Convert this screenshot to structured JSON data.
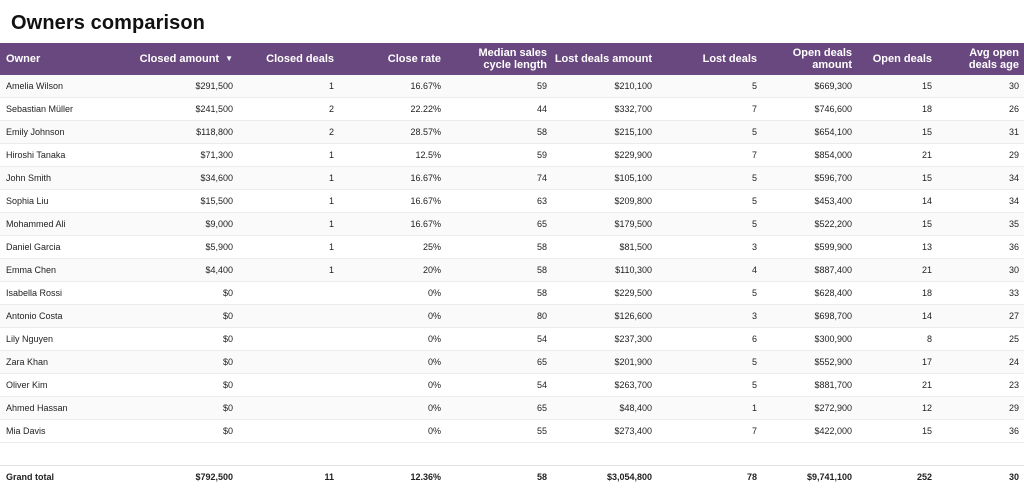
{
  "title": "Owners comparison",
  "columns": [
    [
      "Owner"
    ],
    [
      "Closed amount"
    ],
    [
      "Closed deals"
    ],
    [
      "Close rate"
    ],
    [
      "Median sales",
      "cycle length"
    ],
    [
      "Lost deals amount"
    ],
    [
      "Lost deals"
    ],
    [
      "Open deals",
      "amount"
    ],
    [
      "Open deals"
    ],
    [
      "Avg open",
      "deals age"
    ]
  ],
  "sort_icon": "▼",
  "rows": [
    [
      "Amelia Wilson",
      "$291,500",
      "1",
      "16.67%",
      "59",
      "$210,100",
      "5",
      "$669,300",
      "15",
      "30"
    ],
    [
      "Sebastian Müller",
      "$241,500",
      "2",
      "22.22%",
      "44",
      "$332,700",
      "7",
      "$746,600",
      "18",
      "26"
    ],
    [
      "Emily Johnson",
      "$118,800",
      "2",
      "28.57%",
      "58",
      "$215,100",
      "5",
      "$654,100",
      "15",
      "31"
    ],
    [
      "Hiroshi Tanaka",
      "$71,300",
      "1",
      "12.5%",
      "59",
      "$229,900",
      "7",
      "$854,000",
      "21",
      "29"
    ],
    [
      "John Smith",
      "$34,600",
      "1",
      "16.67%",
      "74",
      "$105,100",
      "5",
      "$596,700",
      "15",
      "34"
    ],
    [
      "Sophia Liu",
      "$15,500",
      "1",
      "16.67%",
      "63",
      "$209,800",
      "5",
      "$453,400",
      "14",
      "34"
    ],
    [
      "Mohammed Ali",
      "$9,000",
      "1",
      "16.67%",
      "65",
      "$179,500",
      "5",
      "$522,200",
      "15",
      "35"
    ],
    [
      "Daniel Garcia",
      "$5,900",
      "1",
      "25%",
      "58",
      "$81,500",
      "3",
      "$599,900",
      "13",
      "36"
    ],
    [
      "Emma Chen",
      "$4,400",
      "1",
      "20%",
      "58",
      "$110,300",
      "4",
      "$887,400",
      "21",
      "30"
    ],
    [
      "Isabella Rossi",
      "$0",
      "",
      "0%",
      "58",
      "$229,500",
      "5",
      "$628,400",
      "18",
      "33"
    ],
    [
      "Antonio Costa",
      "$0",
      "",
      "0%",
      "80",
      "$126,600",
      "3",
      "$698,700",
      "14",
      "27"
    ],
    [
      "Lily Nguyen",
      "$0",
      "",
      "0%",
      "54",
      "$237,300",
      "6",
      "$300,900",
      "8",
      "25"
    ],
    [
      "Zara Khan",
      "$0",
      "",
      "0%",
      "65",
      "$201,900",
      "5",
      "$552,900",
      "17",
      "24"
    ],
    [
      "Oliver Kim",
      "$0",
      "",
      "0%",
      "54",
      "$263,700",
      "5",
      "$881,700",
      "21",
      "23"
    ],
    [
      "Ahmed Hassan",
      "$0",
      "",
      "0%",
      "65",
      "$48,400",
      "1",
      "$272,900",
      "12",
      "29"
    ],
    [
      "Mia Davis",
      "$0",
      "",
      "0%",
      "55",
      "$273,400",
      "7",
      "$422,000",
      "15",
      "36"
    ]
  ],
  "total": [
    "Grand total",
    "$792,500",
    "11",
    "12.36%",
    "58",
    "$3,054,800",
    "78",
    "$9,741,100",
    "252",
    "30"
  ]
}
